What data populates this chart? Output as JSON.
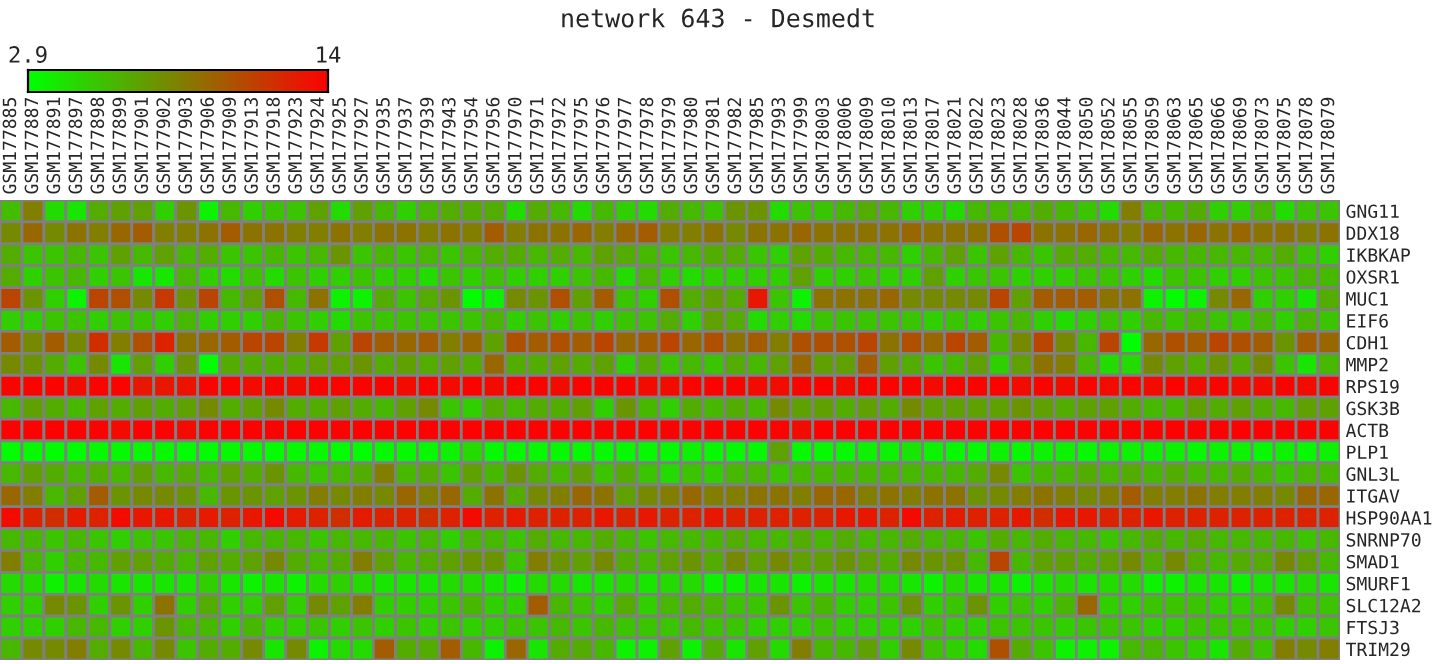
{
  "chart_data": {
    "type": "heatmap",
    "title": "network 643 - Desmedt",
    "categories": [
      "GSM177885",
      "GSM177887",
      "GSM177891",
      "GSM177897",
      "GSM177898",
      "GSM177899",
      "GSM177901",
      "GSM177902",
      "GSM177903",
      "GSM177906",
      "GSM177909",
      "GSM177913",
      "GSM177918",
      "GSM177923",
      "GSM177924",
      "GSM177925",
      "GSM177927",
      "GSM177935",
      "GSM177937",
      "GSM177939",
      "GSM177943",
      "GSM177954",
      "GSM177956",
      "GSM177970",
      "GSM177971",
      "GSM177972",
      "GSM177975",
      "GSM177976",
      "GSM177977",
      "GSM177978",
      "GSM177979",
      "GSM177980",
      "GSM177981",
      "GSM177982",
      "GSM177985",
      "GSM177993",
      "GSM177999",
      "GSM178003",
      "GSM178006",
      "GSM178009",
      "GSM178010",
      "GSM178013",
      "GSM178017",
      "GSM178021",
      "GSM178022",
      "GSM178023",
      "GSM178028",
      "GSM178036",
      "GSM178044",
      "GSM178050",
      "GSM178052",
      "GSM178055",
      "GSM178059",
      "GSM178063",
      "GSM178065",
      "GSM178066",
      "GSM178069",
      "GSM178073",
      "GSM178075",
      "GSM178078",
      "GSM178079"
    ],
    "y_categories": [
      "GNG11",
      "DDX18",
      "IKBKAP",
      "OXSR1",
      "MUC1",
      "EIF6",
      "CDH1",
      "MMP2",
      "RPS19",
      "GSK3B",
      "ACTB",
      "PLP1",
      "GNL3L",
      "ITGAV",
      "HSP90AA1",
      "SNRNP70",
      "SMAD1",
      "SMURF1",
      "SLC12A2",
      "FTSJ3",
      "TRIM29"
    ],
    "cells": [
      [
        5.8,
        8.5,
        4.5,
        4,
        6.5,
        7,
        7,
        5,
        7.5,
        3.5,
        6,
        5,
        5.5,
        5.5,
        7,
        4.5,
        7,
        6,
        5,
        6,
        6.5,
        6.5,
        6.5,
        4.5,
        6.5,
        6,
        4.5,
        6,
        5,
        4.5,
        6.5,
        6,
        5.5,
        7.5,
        7.5,
        4.5,
        5.5,
        5.5,
        6,
        6.5,
        6,
        5,
        5,
        4.5,
        6,
        6,
        6,
        6.5,
        6,
        5.5,
        4.5,
        8.5,
        6,
        6,
        6.5,
        5,
        5,
        6,
        4.5,
        5.5,
        5.5
      ],
      [
        8,
        9.5,
        8,
        9,
        8.5,
        9.5,
        10,
        8.5,
        8.5,
        9,
        10,
        9,
        9,
        8.5,
        8.5,
        9,
        8.5,
        9,
        9,
        8.5,
        9,
        8.5,
        10,
        8.5,
        9,
        9,
        9.5,
        8.5,
        9.5,
        10,
        8.5,
        8.5,
        9,
        8,
        9,
        9,
        9.5,
        9,
        9,
        9,
        9,
        9.5,
        9,
        9,
        9,
        10.5,
        11,
        9,
        9,
        9.5,
        9,
        8.5,
        9.5,
        9,
        9.5,
        9,
        9.5,
        9,
        9,
        8.5,
        9
      ],
      [
        6.5,
        5.5,
        5.5,
        6,
        5.5,
        7,
        6,
        7,
        6,
        6.5,
        5.5,
        5.5,
        6,
        5.5,
        6,
        7.5,
        5.5,
        6,
        5.5,
        6,
        5.5,
        6,
        6.5,
        6.5,
        6,
        6.5,
        6,
        7,
        6.5,
        6,
        5.5,
        6,
        6.5,
        6.5,
        5.5,
        5,
        7,
        6.5,
        6,
        6,
        6,
        5,
        6,
        7,
        5.5,
        7,
        6,
        5.5,
        6.5,
        6.5,
        6,
        6,
        6.5,
        6,
        6,
        6,
        6,
        6,
        6.5,
        5.5,
        5
      ],
      [
        6.5,
        5,
        5.5,
        6,
        5,
        5.5,
        4,
        4,
        6,
        5,
        4.5,
        5.5,
        4.5,
        5.5,
        5,
        5,
        5.5,
        5,
        5,
        4.5,
        5.5,
        5,
        5.5,
        5,
        5,
        5,
        5.5,
        6,
        4.5,
        6,
        5,
        4.5,
        5,
        5,
        5,
        5,
        7,
        5,
        5,
        5.5,
        5,
        5,
        7,
        5,
        5.5,
        5.5,
        5,
        5,
        5,
        5.5,
        5.5,
        5,
        4.5,
        5.5,
        5.5,
        5,
        5,
        5.5,
        5.5,
        6,
        6
      ],
      [
        11,
        7.5,
        5,
        3.5,
        11,
        10.5,
        8,
        11.5,
        7.5,
        11,
        6,
        7,
        10.5,
        6,
        9,
        3.5,
        3.5,
        6.5,
        5.5,
        6.5,
        7.5,
        3,
        3.5,
        8,
        7.5,
        10.5,
        7,
        10,
        5.5,
        5,
        10.5,
        6.5,
        7,
        6.5,
        13,
        5.5,
        3.5,
        9,
        9,
        9,
        9.5,
        8,
        8,
        8,
        8,
        11,
        7,
        10,
        10,
        10,
        9,
        9,
        3.5,
        3,
        3.5,
        8,
        9.5,
        5,
        5,
        4,
        6.5
      ],
      [
        5,
        5,
        5.5,
        5.5,
        5,
        5.5,
        5.5,
        5,
        6,
        5,
        5,
        5,
        6,
        5.5,
        5,
        4.5,
        5.5,
        5.5,
        5.5,
        5.5,
        5.5,
        5.5,
        6,
        5,
        5.5,
        5,
        5.5,
        5,
        5.5,
        5.5,
        6.5,
        5,
        7,
        6.5,
        4.5,
        5,
        4.5,
        5.5,
        5.5,
        5.5,
        5.5,
        5.5,
        5,
        5.5,
        5,
        5.5,
        6,
        5,
        4.5,
        5,
        5.5,
        5,
        6,
        5.5,
        6,
        5.5,
        5.5,
        6,
        5,
        6,
        5.5
      ],
      [
        10,
        8,
        10,
        8,
        12,
        8.5,
        10.5,
        12.5,
        9,
        9.5,
        10,
        11,
        11,
        8.5,
        11.5,
        7,
        11,
        10,
        9.5,
        10,
        8.5,
        9.5,
        7,
        10.5,
        10,
        10.5,
        10,
        11,
        9.5,
        10,
        11,
        9.5,
        10.5,
        9,
        10,
        8.5,
        10.5,
        10.5,
        10.5,
        11,
        9,
        10.5,
        9.5,
        11,
        10,
        6,
        8,
        11,
        8,
        6,
        11,
        3,
        9.5,
        10.5,
        10,
        11,
        10.5,
        10,
        7.5,
        10,
        9.5
      ],
      [
        8,
        7.5,
        6.5,
        5.5,
        8,
        4,
        7,
        5,
        7.5,
        3,
        6.5,
        6.5,
        6.5,
        6.5,
        7,
        7,
        7.5,
        6.5,
        7,
        6.5,
        7,
        6.5,
        9.5,
        6.5,
        6.5,
        7,
        6.5,
        7,
        5,
        6.5,
        5.5,
        6,
        5.5,
        6.5,
        6,
        7,
        9.5,
        7,
        7,
        10,
        7,
        6.5,
        5.5,
        6,
        7,
        5,
        7,
        9,
        8.5,
        6,
        4.5,
        4.5,
        8,
        7,
        6.5,
        7.5,
        6.5,
        8,
        5.5,
        4,
        6
      ],
      [
        13.8,
        13.8,
        13.8,
        13.5,
        13.8,
        13.8,
        13,
        13,
        13.2,
        13.8,
        13.8,
        13.5,
        13.8,
        13.5,
        13.8,
        13.8,
        13.8,
        13.8,
        13.5,
        13.8,
        13.5,
        13.8,
        13.5,
        13.8,
        13.8,
        13.5,
        13.8,
        13.8,
        13.8,
        13.5,
        13.5,
        13.8,
        13.8,
        13.8,
        13.5,
        13.5,
        13.8,
        13.8,
        13.5,
        13.8,
        13.8,
        13.8,
        13.5,
        13.8,
        13.8,
        13.8,
        13.5,
        13.8,
        13.5,
        13.8,
        13.5,
        13.8,
        13.5,
        13.8,
        13.5,
        13.8,
        13.5,
        13.5,
        13.8,
        13.5,
        13.8
      ],
      [
        6,
        7,
        6.5,
        6,
        7,
        6.5,
        7,
        6.5,
        7,
        8,
        6.5,
        7,
        8,
        6.5,
        6.5,
        7,
        6.5,
        6,
        7,
        8,
        5.5,
        5,
        6.5,
        6,
        6.5,
        6.5,
        7,
        5,
        7.5,
        6,
        5,
        6.5,
        6,
        6.5,
        6,
        8,
        7,
        7,
        6.5,
        7,
        6.5,
        8,
        7,
        7,
        7,
        7,
        7.5,
        7,
        6.5,
        7,
        7,
        6.5,
        6,
        6,
        7,
        6.5,
        7,
        6.5,
        6,
        7,
        7
      ],
      [
        13.9,
        13.9,
        13.9,
        13.9,
        13.9,
        13.5,
        13.9,
        13.9,
        13.5,
        13.9,
        13.9,
        13.9,
        13.9,
        13.9,
        13.9,
        13.9,
        13.9,
        13.9,
        13.9,
        13.9,
        13.9,
        13.9,
        13.9,
        13.9,
        13.9,
        13.9,
        13.9,
        13.9,
        13.9,
        13.9,
        13.9,
        13.9,
        13.9,
        13.9,
        13.9,
        13.9,
        13.5,
        13.9,
        13.9,
        13.9,
        13.9,
        13.9,
        13.9,
        13.9,
        13.9,
        13.9,
        13.9,
        13.9,
        13.9,
        13.9,
        13.9,
        13.9,
        13.9,
        13.9,
        13.9,
        13.9,
        13.9,
        13.9,
        13.9,
        13.9,
        13.9
      ],
      [
        3,
        3.2,
        3,
        3,
        3.2,
        3.2,
        3.2,
        3.2,
        3,
        3,
        3.2,
        3.2,
        3,
        3.2,
        3.2,
        3,
        3,
        3.2,
        3.2,
        3.2,
        3.5,
        4.5,
        3.2,
        3.2,
        3.2,
        3.2,
        3.2,
        3.2,
        3.2,
        3.2,
        3.2,
        3.5,
        3.2,
        3.2,
        3.2,
        7,
        3.2,
        3.2,
        3.2,
        3.5,
        3.5,
        4,
        3.5,
        3.2,
        3.2,
        3.5,
        3.2,
        3.5,
        3.5,
        3.2,
        3.5,
        3.5,
        3.5,
        3.5,
        3.2,
        3.5,
        3.5,
        3.2,
        3.5,
        3.2,
        3.5
      ],
      [
        6,
        7,
        6.5,
        6,
        6.5,
        6,
        7,
        6,
        6.5,
        6,
        7,
        6.5,
        7.5,
        6,
        5.5,
        6,
        6.5,
        8.5,
        6,
        6.5,
        5.5,
        7,
        6,
        7.5,
        6.5,
        6,
        7,
        5.5,
        6.5,
        5.5,
        4.5,
        5.5,
        5,
        6,
        6,
        5.5,
        6,
        6,
        6,
        6,
        6,
        6,
        6,
        6,
        6.5,
        8,
        5.5,
        6,
        6,
        6.5,
        6,
        6.5,
        6,
        6.5,
        6,
        6,
        6.5,
        6,
        5.5,
        6,
        6
      ],
      [
        9.5,
        8.5,
        6,
        7,
        10,
        7.5,
        8,
        8,
        7.5,
        6,
        7.5,
        7.5,
        7,
        7.5,
        8.5,
        8,
        8.5,
        8,
        9.5,
        8.5,
        9.5,
        6.5,
        9,
        6.5,
        8,
        8.5,
        9.5,
        9,
        7,
        8,
        8.5,
        9.5,
        8.5,
        8.5,
        9,
        9,
        8.5,
        9.5,
        9.5,
        8.5,
        9,
        8.5,
        9,
        9,
        7.5,
        8,
        8.5,
        9,
        8.5,
        8,
        8.5,
        10,
        8.5,
        8.5,
        9,
        8.5,
        8.5,
        8.5,
        8,
        9.5,
        9.5
      ],
      [
        13.5,
        12.5,
        12,
        12.8,
        12.5,
        13.5,
        13,
        13,
        12.5,
        12.8,
        12.5,
        13,
        13.5,
        12.8,
        12.5,
        12,
        12.8,
        12.5,
        12.5,
        12,
        12.5,
        13.5,
        12.5,
        12.8,
        12.5,
        12.5,
        12.5,
        13,
        12.5,
        13,
        12.5,
        12.5,
        13,
        12.5,
        12.5,
        12.5,
        12.5,
        12.5,
        13,
        13,
        12.5,
        13.5,
        12.5,
        12.8,
        12.5,
        12.5,
        13,
        12,
        13,
        13,
        12.5,
        12.5,
        13,
        12.5,
        12.5,
        12.5,
        12.5,
        12.5,
        12.5,
        12.5,
        12.5
      ],
      [
        6,
        6,
        5.5,
        6,
        5.5,
        5,
        5.5,
        5.5,
        6,
        6,
        5,
        6,
        6,
        6,
        5.5,
        6,
        6,
        6,
        5.5,
        6,
        5,
        6,
        6,
        5.5,
        6.5,
        6,
        6,
        6.5,
        6,
        5.5,
        6,
        6,
        6,
        6.5,
        6,
        6,
        6.5,
        6,
        6.5,
        6,
        6,
        6.5,
        6,
        6,
        5.5,
        6.5,
        6,
        6.5,
        6,
        6,
        5.5,
        6,
        6.5,
        6,
        6.5,
        6,
        6,
        6,
        6,
        5.5,
        6
      ],
      [
        8.5,
        6,
        5,
        6,
        6,
        7,
        7,
        6.5,
        6,
        7,
        6.5,
        7,
        8,
        6.5,
        6,
        6.5,
        8.5,
        7,
        6,
        6.5,
        7,
        7.5,
        7.5,
        5.5,
        8.5,
        7.5,
        7,
        8,
        6.5,
        6,
        7,
        7.5,
        6.5,
        8,
        7,
        8,
        7,
        7,
        7.5,
        7,
        6.5,
        8,
        7.5,
        7.5,
        6,
        11,
        6,
        7,
        7,
        6.5,
        7,
        8,
        6.5,
        8,
        6.5,
        6,
        6.5,
        6.5,
        8,
        7,
        6
      ],
      [
        4.5,
        4.5,
        3.5,
        4,
        4.5,
        4,
        4,
        4,
        4,
        5,
        4,
        3.5,
        4,
        3.5,
        4.5,
        5,
        4.5,
        4,
        4,
        4,
        4.5,
        4.5,
        4,
        3.5,
        4.5,
        4.5,
        4,
        4,
        4.5,
        4,
        4.5,
        4.5,
        3.5,
        3.5,
        4,
        4,
        3.5,
        4,
        4,
        4.5,
        4.5,
        4,
        3.5,
        4.5,
        4,
        4,
        3.5,
        4,
        4.5,
        4,
        4.5,
        4.5,
        3.5,
        3.5,
        4,
        4,
        3.5,
        4,
        4,
        4.5,
        4
      ],
      [
        5,
        5,
        8,
        7.5,
        5,
        7.5,
        5,
        9,
        5,
        6.5,
        5,
        5,
        7,
        5,
        8,
        7,
        8.5,
        5,
        5,
        5,
        5.5,
        6,
        5,
        5,
        10,
        6,
        5.5,
        5,
        6.5,
        5,
        6,
        6.5,
        6,
        5.5,
        5.5,
        7.5,
        5.5,
        6,
        5,
        5,
        5.5,
        7.5,
        5,
        5.5,
        7.5,
        5,
        5.5,
        5,
        6,
        9.5,
        5,
        5,
        5.5,
        5.5,
        5.5,
        5,
        5,
        5.5,
        8,
        5.5,
        5.5
      ],
      [
        5,
        5,
        5,
        6,
        6,
        5,
        5,
        7.5,
        6,
        6,
        5,
        6,
        5,
        5,
        5.5,
        5,
        5.5,
        5,
        5.5,
        5,
        5.5,
        5,
        5,
        5.5,
        5.5,
        6,
        5.5,
        6,
        5.5,
        5.5,
        5.5,
        6,
        5.5,
        5.5,
        5,
        5,
        5,
        5.5,
        5,
        5,
        5,
        5,
        5.5,
        5,
        5,
        5.5,
        5.5,
        5.5,
        5,
        5.5,
        5.5,
        5.5,
        5,
        5,
        5.5,
        5.5,
        5.5,
        5.5,
        5,
        5,
        5.5
      ],
      [
        6,
        8,
        8,
        8.5,
        6.5,
        8,
        6,
        8,
        5.5,
        6.5,
        6.5,
        8,
        4,
        8,
        3.5,
        4.5,
        4.5,
        10,
        6.5,
        6.5,
        10,
        6,
        3.5,
        9.5,
        4,
        6.5,
        6.5,
        6,
        3.5,
        3.5,
        7,
        3.5,
        6.5,
        4,
        7,
        4.5,
        8.5,
        6,
        6,
        7,
        5,
        8,
        5.5,
        5,
        4.5,
        10.5,
        6.5,
        5.5,
        3.5,
        3.5,
        3.5,
        6,
        6,
        5.5,
        5,
        4,
        6.5,
        5.5,
        8.5,
        8,
        8.5
      ]
    ],
    "clim": [
      2.9,
      14
    ],
    "cticks": [
      2.9,
      14
    ],
    "colors": [
      "#00ff00",
      "#ff0000"
    ]
  }
}
